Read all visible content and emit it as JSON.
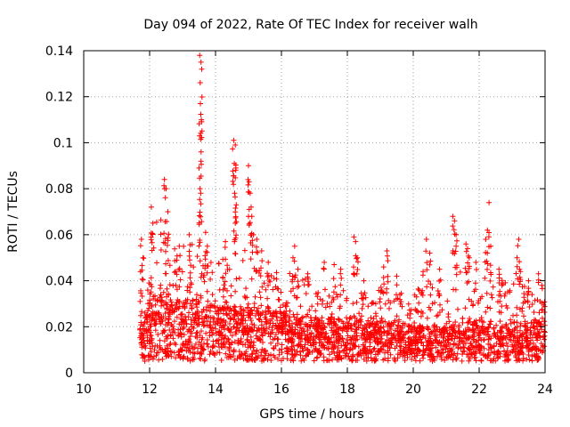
{
  "chart_data": {
    "type": "scatter",
    "title": "Day 094 of 2022, Rate Of TEC Index for receiver walh",
    "xlabel": "GPS time / hours",
    "ylabel": "ROTI / TECUs",
    "xlim": [
      10,
      24
    ],
    "ylim": [
      0,
      0.14
    ],
    "x_ticks": [
      10,
      12,
      14,
      16,
      18,
      20,
      22,
      24
    ],
    "x_tick_labels": [
      "10",
      "12",
      "14",
      "16",
      "18",
      "20",
      "22",
      "24"
    ],
    "y_ticks": [
      0,
      0.02,
      0.04,
      0.06,
      0.08,
      0.1,
      0.12,
      0.14
    ],
    "y_tick_labels": [
      "0",
      "0.02",
      "0.04",
      "0.06",
      "0.08",
      "0.1",
      "0.12",
      "0.14"
    ],
    "grid": true,
    "marker": "+",
    "series": [
      {
        "name": "ROTI",
        "color": "#ff0000",
        "profile": {
          "x": [
            11.7,
            12.0,
            12.3,
            12.5,
            12.8,
            13.0,
            13.3,
            13.5,
            13.7,
            14.0,
            14.3,
            14.6,
            14.9,
            15.2,
            15.6,
            16.0,
            16.4,
            16.8,
            17.2,
            17.6,
            18.0,
            18.4,
            18.8,
            19.2,
            19.6,
            20.0,
            20.4,
            20.8,
            21.2,
            21.6,
            22.0,
            22.4,
            22.8,
            23.2,
            23.6,
            24.0
          ],
          "median": [
            0.015,
            0.02,
            0.022,
            0.022,
            0.02,
            0.02,
            0.02,
            0.02,
            0.02,
            0.018,
            0.018,
            0.018,
            0.018,
            0.017,
            0.017,
            0.017,
            0.016,
            0.016,
            0.015,
            0.015,
            0.015,
            0.015,
            0.014,
            0.014,
            0.014,
            0.013,
            0.013,
            0.013,
            0.013,
            0.014,
            0.014,
            0.014,
            0.014,
            0.014,
            0.014,
            0.014
          ],
          "upper": [
            0.045,
            0.06,
            0.07,
            0.065,
            0.055,
            0.055,
            0.06,
            0.06,
            0.055,
            0.05,
            0.05,
            0.06,
            0.055,
            0.045,
            0.045,
            0.045,
            0.045,
            0.04,
            0.035,
            0.035,
            0.04,
            0.035,
            0.035,
            0.04,
            0.035,
            0.035,
            0.04,
            0.04,
            0.045,
            0.045,
            0.04,
            0.045,
            0.04,
            0.04,
            0.035,
            0.035
          ]
        },
        "peaks": [
          [
            11.75,
            0.058
          ],
          [
            11.8,
            0.05
          ],
          [
            12.05,
            0.072
          ],
          [
            12.1,
            0.065
          ],
          [
            12.45,
            0.084
          ],
          [
            12.5,
            0.08
          ],
          [
            12.55,
            0.07
          ],
          [
            12.9,
            0.055
          ],
          [
            13.2,
            0.06
          ],
          [
            13.52,
            0.138
          ],
          [
            13.56,
            0.135
          ],
          [
            13.58,
            0.132
          ],
          [
            13.54,
            0.117
          ],
          [
            13.57,
            0.11
          ],
          [
            13.5,
            0.089
          ],
          [
            13.53,
            0.08
          ],
          [
            13.55,
            0.078
          ],
          [
            13.7,
            0.061
          ],
          [
            13.75,
            0.055
          ],
          [
            14.3,
            0.057
          ],
          [
            14.55,
            0.101
          ],
          [
            14.6,
            0.099
          ],
          [
            14.57,
            0.091
          ],
          [
            14.62,
            0.089
          ],
          [
            14.58,
            0.078
          ],
          [
            14.63,
            0.073
          ],
          [
            14.6,
            0.065
          ],
          [
            15.0,
            0.09
          ],
          [
            15.02,
            0.083
          ],
          [
            15.05,
            0.078
          ],
          [
            15.08,
            0.072
          ],
          [
            15.1,
            0.068
          ],
          [
            15.15,
            0.06
          ],
          [
            15.25,
            0.058
          ],
          [
            15.4,
            0.053
          ],
          [
            15.6,
            0.048
          ],
          [
            16.4,
            0.055
          ],
          [
            16.35,
            0.05
          ],
          [
            16.5,
            0.045
          ],
          [
            16.8,
            0.043
          ],
          [
            17.3,
            0.048
          ],
          [
            17.6,
            0.047
          ],
          [
            17.8,
            0.045
          ],
          [
            18.2,
            0.059
          ],
          [
            18.25,
            0.057
          ],
          [
            18.3,
            0.05
          ],
          [
            18.5,
            0.04
          ],
          [
            19.2,
            0.053
          ],
          [
            19.1,
            0.046
          ],
          [
            19.5,
            0.042
          ],
          [
            20.4,
            0.058
          ],
          [
            20.5,
            0.052
          ],
          [
            20.3,
            0.044
          ],
          [
            20.8,
            0.045
          ],
          [
            21.2,
            0.068
          ],
          [
            21.25,
            0.066
          ],
          [
            21.3,
            0.06
          ],
          [
            21.3,
            0.055
          ],
          [
            21.6,
            0.056
          ],
          [
            21.65,
            0.054
          ],
          [
            21.7,
            0.05
          ],
          [
            21.9,
            0.048
          ],
          [
            22.3,
            0.074
          ],
          [
            22.25,
            0.062
          ],
          [
            22.2,
            0.058
          ],
          [
            22.35,
            0.055
          ],
          [
            22.6,
            0.045
          ],
          [
            23.2,
            0.058
          ],
          [
            23.15,
            0.05
          ],
          [
            23.25,
            0.044
          ],
          [
            23.5,
            0.04
          ],
          [
            23.8,
            0.043
          ],
          [
            23.9,
            0.038
          ]
        ]
      }
    ]
  }
}
